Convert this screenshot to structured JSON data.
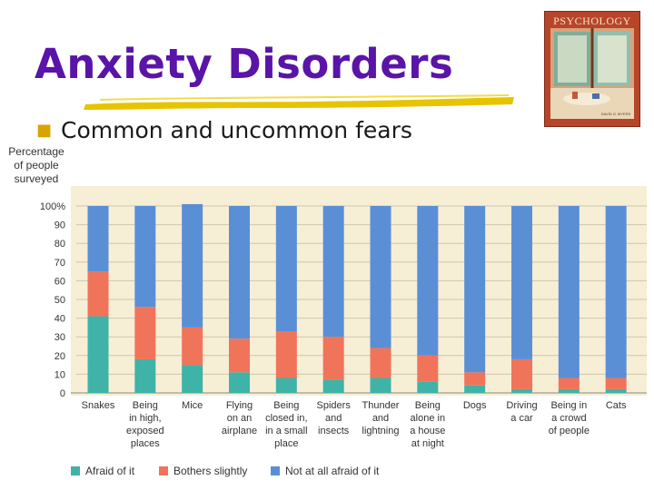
{
  "slide": {
    "title": "Anxiety Disorders",
    "bullet": "Common and uncommon fears",
    "book_title": "PSYCHOLOGY",
    "book_author": "DAVID G. MYERS"
  },
  "chart_data": {
    "type": "bar",
    "stacked": true,
    "title": "",
    "ylabel_lines": [
      "Percentage",
      "of people",
      "surveyed"
    ],
    "ylim": [
      0,
      100
    ],
    "yticks": [
      "0",
      "10",
      "20",
      "30",
      "40",
      "50",
      "60",
      "70",
      "80",
      "90",
      "100%"
    ],
    "categories": [
      [
        "Snakes"
      ],
      [
        "Being",
        "in high,",
        "exposed",
        "places"
      ],
      [
        "Mice"
      ],
      [
        "Flying",
        "on an",
        "airplane"
      ],
      [
        "Being",
        "closed in,",
        "in a small",
        "place"
      ],
      [
        "Spiders",
        "and",
        "insects"
      ],
      [
        "Thunder",
        "and",
        "lightning"
      ],
      [
        "Being",
        "alone in",
        "a house",
        "at night"
      ],
      [
        "Dogs"
      ],
      [
        "Driving",
        "a car"
      ],
      [
        "Being in",
        "a crowd",
        "of people"
      ],
      [
        "Cats"
      ]
    ],
    "series": [
      {
        "name": "Afraid of it",
        "color": "#3fb3a8",
        "values": [
          41,
          18,
          15,
          11,
          8,
          7,
          8,
          6,
          4,
          2,
          2,
          2
        ]
      },
      {
        "name": "Bothers slightly",
        "color": "#f0745a",
        "values": [
          24,
          28,
          20,
          18,
          25,
          23,
          16,
          14,
          7,
          16,
          6,
          6
        ]
      },
      {
        "name": "Not at all afraid of it",
        "color": "#5a8fd6",
        "values": [
          35,
          54,
          66,
          71,
          67,
          70,
          76,
          80,
          89,
          82,
          92,
          92
        ]
      }
    ],
    "colors": {
      "background": "#f7eed6",
      "grid": "#cfc6ae"
    },
    "grid": true,
    "legend_position": "bottom"
  }
}
